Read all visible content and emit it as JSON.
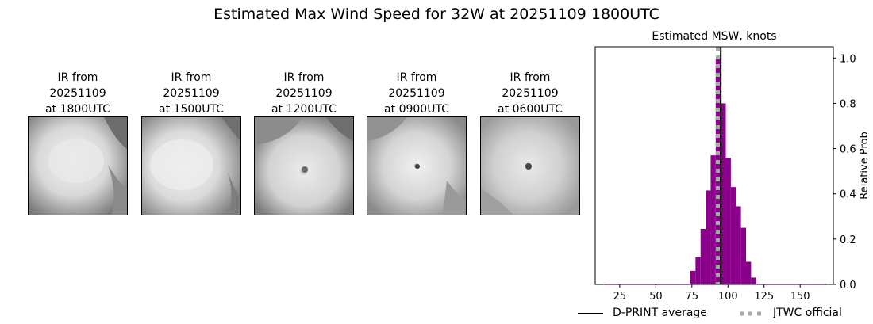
{
  "suptitle": "Estimated Max Wind Speed for 32W at 20251109 1800UTC",
  "panels": [
    {
      "title_lines": [
        "IR from",
        "20251109",
        "at 1800UTC"
      ]
    },
    {
      "title_lines": [
        "IR from",
        "20251109",
        "at 1500UTC"
      ]
    },
    {
      "title_lines": [
        "IR from",
        "20251109",
        "at 1200UTC"
      ]
    },
    {
      "title_lines": [
        "IR from",
        "20251109",
        "at 0900UTC"
      ]
    },
    {
      "title_lines": [
        "IR from",
        "20251109",
        "at 0600UTC"
      ]
    }
  ],
  "chart_data": {
    "type": "bar",
    "title": "Estimated MSW, knots",
    "xlabel": "",
    "ylabel": "Relative Prob",
    "xlim": [
      8,
      173
    ],
    "ylim": [
      0,
      1.05
    ],
    "x_ticks": [
      25,
      50,
      75,
      100,
      125,
      150
    ],
    "y_ticks": [
      0.0,
      0.2,
      0.4,
      0.6,
      0.8,
      1.0
    ],
    "y_tick_labels": [
      "0.0",
      "0.2",
      "0.4",
      "0.6",
      "0.8",
      "1.0"
    ],
    "y_axis_side": "right",
    "bar_color": "#8b008b",
    "bin_width": 3.5,
    "bins": [
      {
        "x": 16.25,
        "value": 0.003
      },
      {
        "x": 19.75,
        "value": 0.003
      },
      {
        "x": 23.25,
        "value": 0.003
      },
      {
        "x": 26.75,
        "value": 0.003
      },
      {
        "x": 30.25,
        "value": 0.003
      },
      {
        "x": 33.75,
        "value": 0.003
      },
      {
        "x": 37.25,
        "value": 0.003
      },
      {
        "x": 40.75,
        "value": 0.003
      },
      {
        "x": 44.25,
        "value": 0.003
      },
      {
        "x": 47.75,
        "value": 0.003
      },
      {
        "x": 51.25,
        "value": 0.003
      },
      {
        "x": 54.75,
        "value": 0.003
      },
      {
        "x": 58.25,
        "value": 0.003
      },
      {
        "x": 61.75,
        "value": 0.003
      },
      {
        "x": 65.25,
        "value": 0.003
      },
      {
        "x": 68.75,
        "value": 0.003
      },
      {
        "x": 72.25,
        "value": 0.003
      },
      {
        "x": 75.75,
        "value": 0.06
      },
      {
        "x": 79.25,
        "value": 0.12
      },
      {
        "x": 82.75,
        "value": 0.245
      },
      {
        "x": 86.25,
        "value": 0.415
      },
      {
        "x": 89.75,
        "value": 0.57
      },
      {
        "x": 93.25,
        "value": 1.0
      },
      {
        "x": 96.75,
        "value": 0.8
      },
      {
        "x": 100.25,
        "value": 0.56
      },
      {
        "x": 103.75,
        "value": 0.43
      },
      {
        "x": 107.25,
        "value": 0.345
      },
      {
        "x": 110.75,
        "value": 0.25
      },
      {
        "x": 114.25,
        "value": 0.1
      },
      {
        "x": 117.75,
        "value": 0.03
      },
      {
        "x": 121.25,
        "value": 0.003
      },
      {
        "x": 124.75,
        "value": 0.003
      },
      {
        "x": 128.25,
        "value": 0.003
      },
      {
        "x": 131.75,
        "value": 0.003
      },
      {
        "x": 135.25,
        "value": 0.003
      },
      {
        "x": 138.75,
        "value": 0.003
      },
      {
        "x": 142.25,
        "value": 0.003
      },
      {
        "x": 145.75,
        "value": 0.003
      },
      {
        "x": 149.25,
        "value": 0.003
      },
      {
        "x": 152.75,
        "value": 0.003
      },
      {
        "x": 156.25,
        "value": 0.003
      },
      {
        "x": 159.75,
        "value": 0.003
      },
      {
        "x": 163.25,
        "value": 0.003
      },
      {
        "x": 166.75,
        "value": 0.003
      }
    ],
    "reference_lines": [
      {
        "name": "D-PRINT average",
        "x": 95,
        "color": "#000000",
        "style": "solid"
      },
      {
        "name": "JTWC official",
        "x": 93,
        "color": "#a9a9a9",
        "style": "dotted"
      }
    ],
    "legend_placement": "bottom"
  }
}
